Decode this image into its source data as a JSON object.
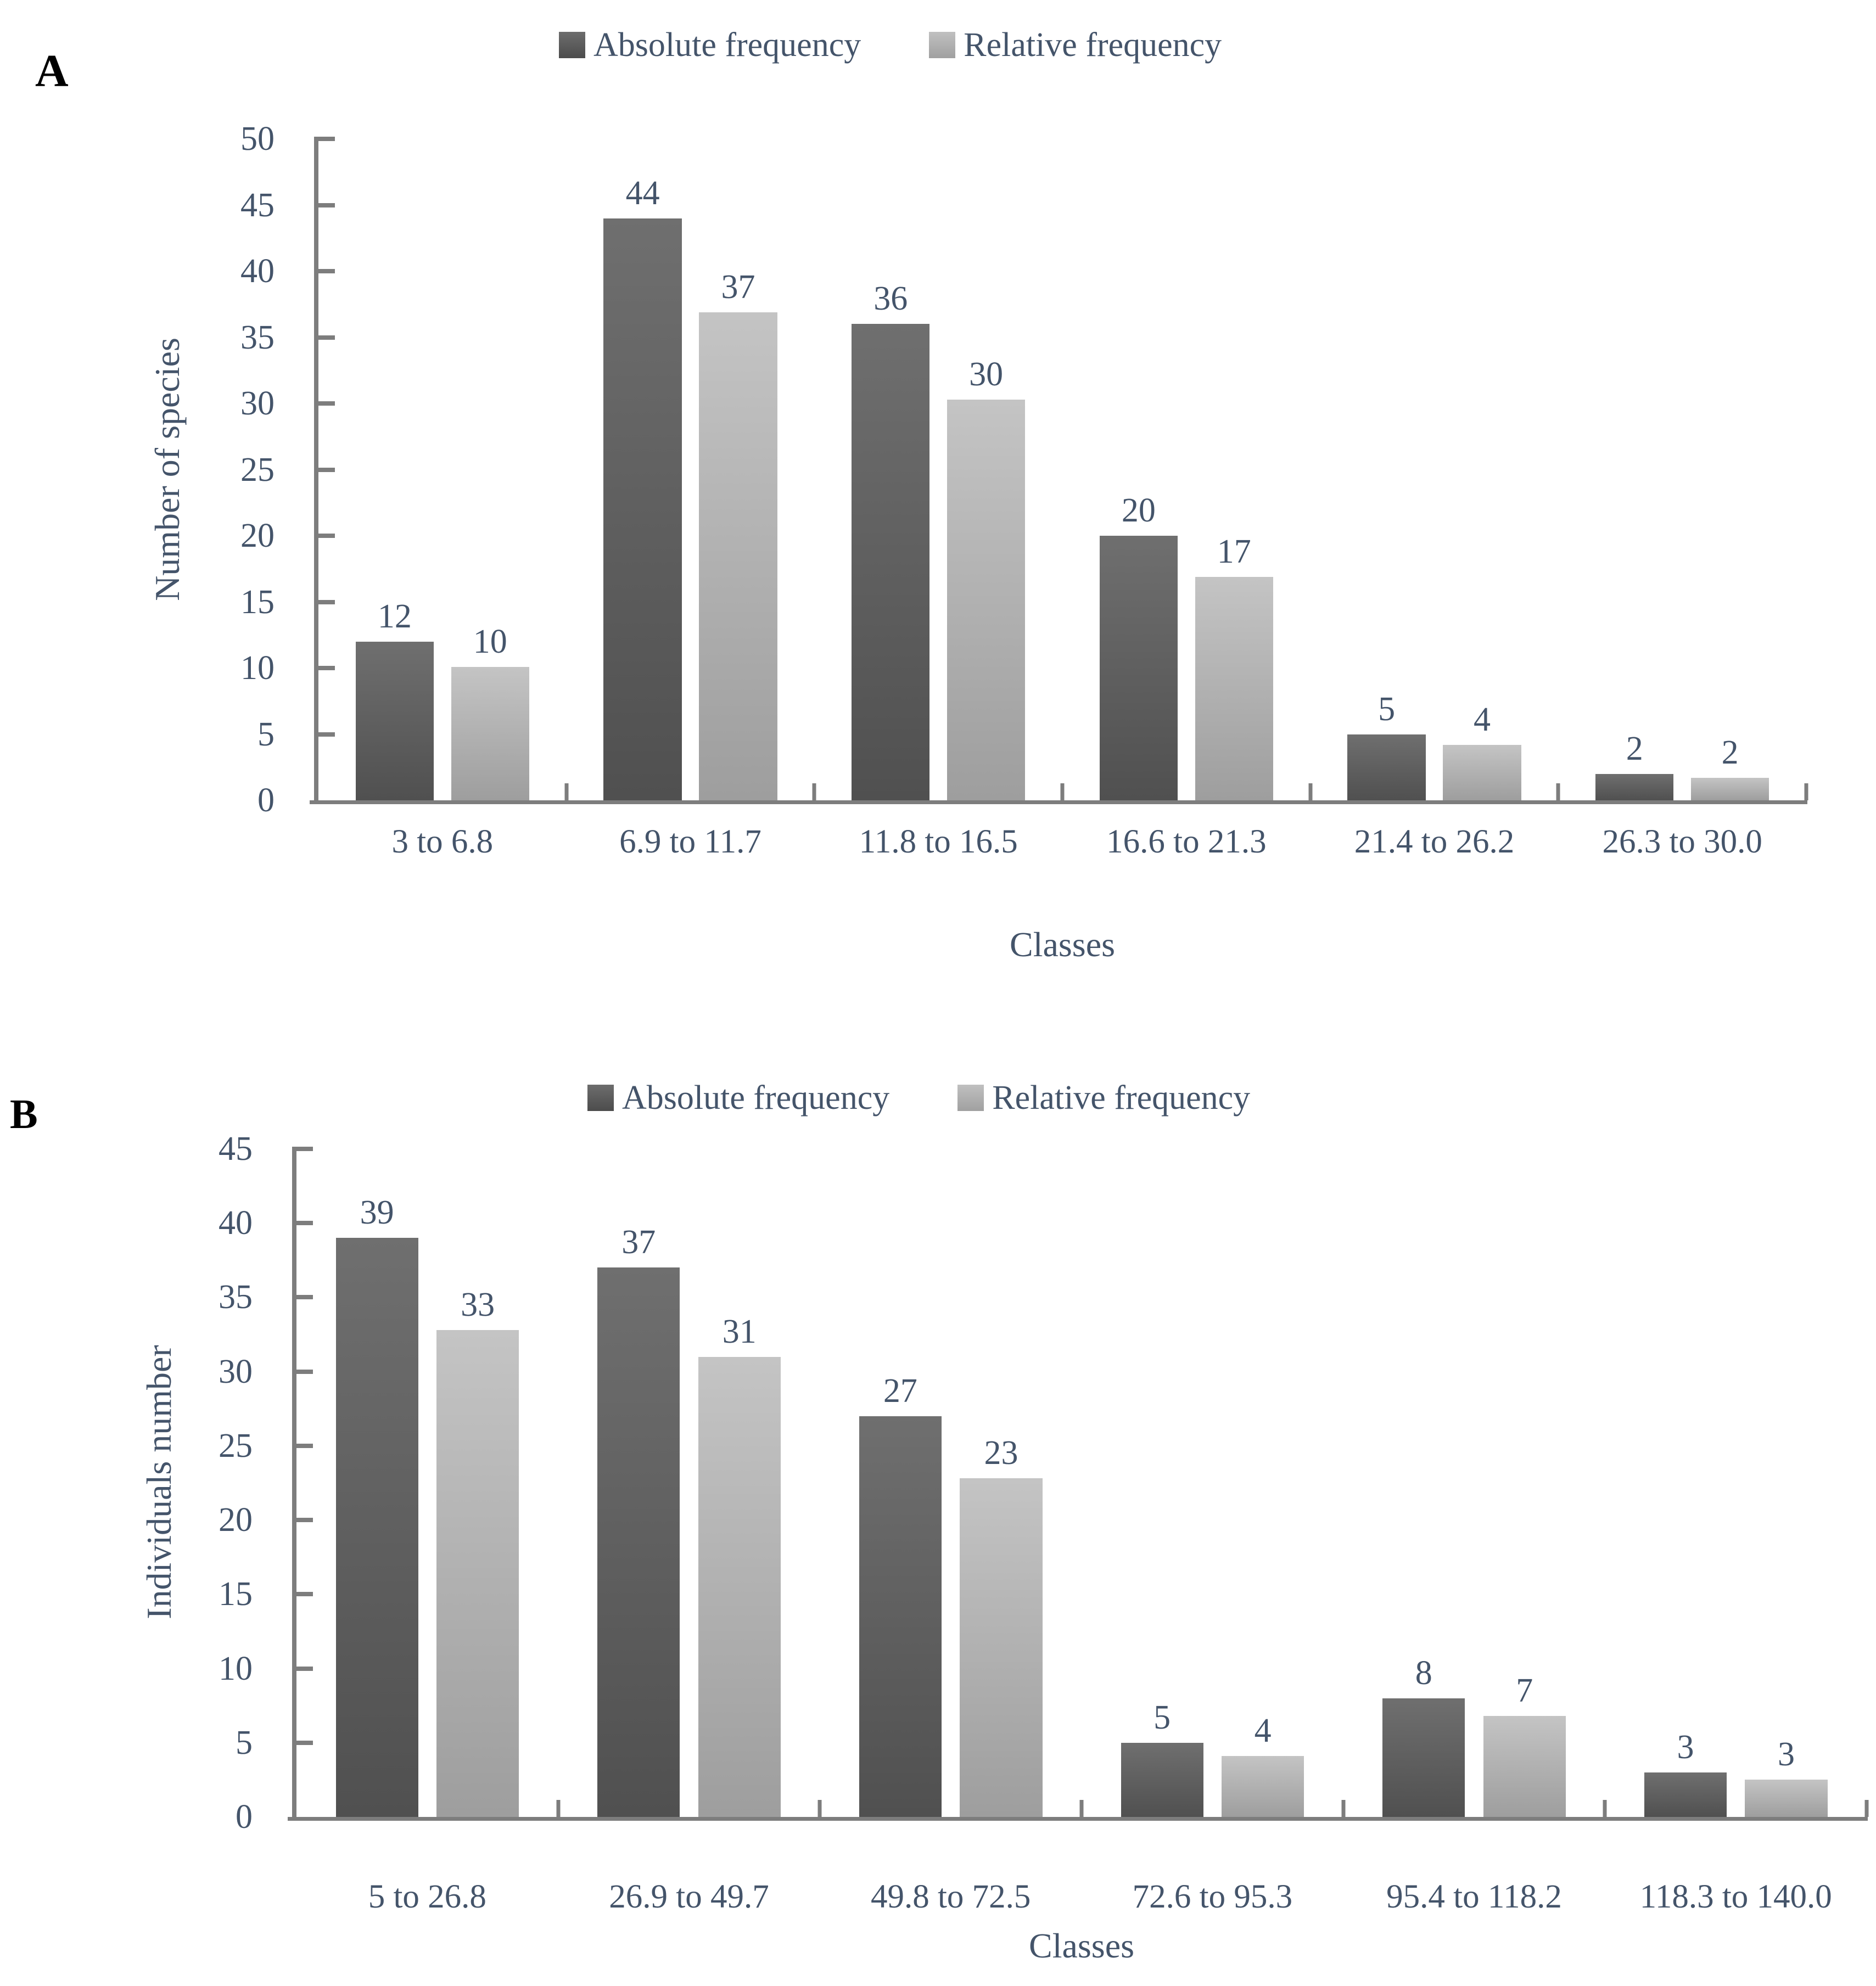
{
  "colors": {
    "label_text": "#44546A",
    "axis_line": "#7D7D7D",
    "bar_dark_top": "#6F6F6F",
    "bar_dark_bottom": "#505050",
    "bar_light_top": "#C4C4C4",
    "bar_light_bottom": "#9E9E9E",
    "panel_letter": "#000000"
  },
  "chart_data": [
    {
      "panel_label": "A",
      "type": "bar",
      "legend": [
        "Absolute frequency",
        "Relative frequency"
      ],
      "legend_position": "top",
      "grid": false,
      "categories": [
        "3 to 6.8",
        "6.9 to 11.7",
        "11.8 to 16.5",
        "16.6 to 21.3",
        "21.4 to 26.2",
        "26.3 to 30.0"
      ],
      "series": [
        {
          "name": "Absolute frequency",
          "values": [
            12,
            44,
            36,
            20,
            5,
            2
          ]
        },
        {
          "name": "Relative frequency",
          "values": [
            10,
            37,
            30,
            17,
            4,
            2
          ],
          "bar_heights": [
            10.1,
            36.9,
            30.3,
            16.9,
            4.2,
            1.7
          ]
        }
      ],
      "xlabel": "Classes",
      "ylabel": "Number of species",
      "ylim": [
        0,
        50
      ],
      "ytick_step": 5
    },
    {
      "panel_label": "B",
      "type": "bar",
      "legend": [
        "Absolute frequency",
        "Relative frequency"
      ],
      "legend_position": "top",
      "grid": false,
      "categories": [
        "5 to 26.8",
        "26.9 to 49.7",
        "49.8 to 72.5",
        "72.6 to 95.3",
        "95.4 to 118.2",
        "118.3 to 140.0"
      ],
      "series": [
        {
          "name": "Absolute frequency",
          "values": [
            39,
            37,
            27,
            5,
            8,
            3
          ]
        },
        {
          "name": "Relative frequency",
          "values": [
            33,
            31,
            23,
            4,
            7,
            3
          ],
          "bar_heights": [
            32.8,
            31.0,
            22.8,
            4.1,
            6.8,
            2.5
          ]
        }
      ],
      "xlabel": "Classes",
      "ylabel": "Individuals number",
      "ylim": [
        0,
        45
      ],
      "ytick_step": 5
    }
  ]
}
